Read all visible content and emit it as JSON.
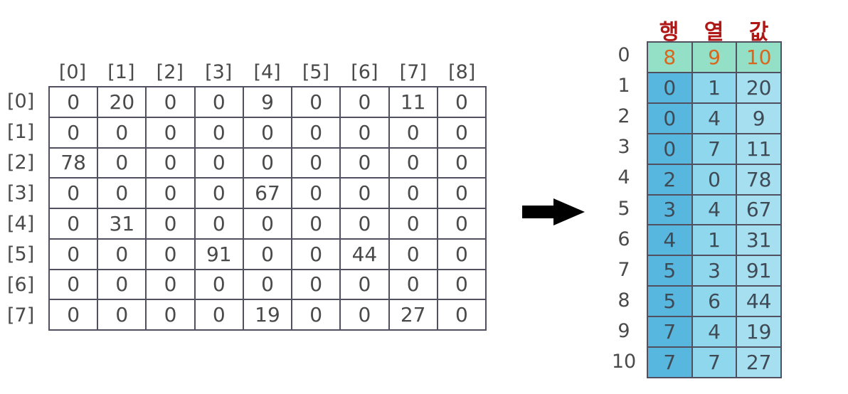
{
  "colors": {
    "header_text": "#b01818",
    "header_row_bg": "#93e0c6",
    "header_row_text": "#d9661a",
    "col_row_bg": "#58b7df",
    "col_col_bg": "#8fd7ec",
    "col_val_bg": "#a5dff0",
    "arrow": "#000000"
  },
  "matrix": {
    "col_headers": [
      "[0]",
      "[1]",
      "[2]",
      "[3]",
      "[4]",
      "[5]",
      "[6]",
      "[7]",
      "[8]"
    ],
    "row_headers": [
      "[0]",
      "[1]",
      "[2]",
      "[3]",
      "[4]",
      "[5]",
      "[6]",
      "[7]"
    ],
    "rows": [
      [
        "0",
        "20",
        "0",
        "0",
        "9",
        "0",
        "0",
        "11",
        "0"
      ],
      [
        "0",
        "0",
        "0",
        "0",
        "0",
        "0",
        "0",
        "0",
        "0"
      ],
      [
        "78",
        "0",
        "0",
        "0",
        "0",
        "0",
        "0",
        "0",
        "0"
      ],
      [
        "0",
        "0",
        "0",
        "0",
        "67",
        "0",
        "0",
        "0",
        "0"
      ],
      [
        "0",
        "31",
        "0",
        "0",
        "0",
        "0",
        "0",
        "0",
        "0"
      ],
      [
        "0",
        "0",
        "0",
        "91",
        "0",
        "0",
        "44",
        "0",
        "0"
      ],
      [
        "0",
        "0",
        "0",
        "0",
        "0",
        "0",
        "0",
        "0",
        "0"
      ],
      [
        "0",
        "0",
        "0",
        "0",
        "19",
        "0",
        "0",
        "27",
        "0"
      ]
    ]
  },
  "arrow_icon": "right-arrow-icon",
  "triple": {
    "headers": [
      "행",
      "열",
      "값"
    ],
    "indices": [
      "0",
      "1",
      "2",
      "3",
      "4",
      "5",
      "6",
      "7",
      "8",
      "9",
      "10"
    ],
    "rows": [
      [
        "8",
        "9",
        "10"
      ],
      [
        "0",
        "1",
        "20"
      ],
      [
        "0",
        "4",
        "9"
      ],
      [
        "0",
        "7",
        "11"
      ],
      [
        "2",
        "0",
        "78"
      ],
      [
        "3",
        "4",
        "67"
      ],
      [
        "4",
        "1",
        "31"
      ],
      [
        "5",
        "3",
        "91"
      ],
      [
        "5",
        "6",
        "44"
      ],
      [
        "7",
        "4",
        "19"
      ],
      [
        "7",
        "7",
        "27"
      ]
    ]
  }
}
